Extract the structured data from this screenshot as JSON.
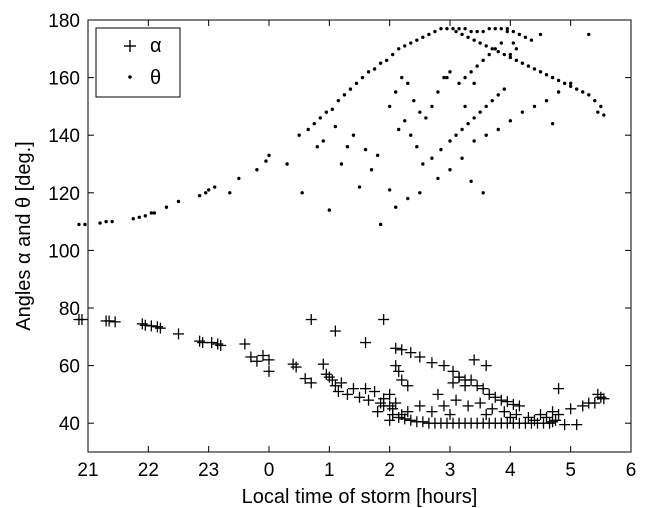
{
  "chart_data": {
    "type": "scatter",
    "title": "",
    "xlabel": "Local time of storm [hours]",
    "ylabel": "Angles α and θ [deg.]",
    "xlim": [
      21,
      30
    ],
    "ylim": [
      30,
      180
    ],
    "xticks": [
      21,
      22,
      23,
      24,
      25,
      26,
      27,
      28,
      29,
      30
    ],
    "xtick_labels": [
      "21",
      "22",
      "23",
      "0",
      "1",
      "2",
      "3",
      "4",
      "5",
      "6"
    ],
    "yticks": [
      40,
      60,
      80,
      100,
      120,
      140,
      160,
      180
    ],
    "ytick_labels": [
      "40",
      "60",
      "80",
      "100",
      "120",
      "140",
      "160",
      "180"
    ],
    "grid": false,
    "legend_placement": "top-left",
    "series": [
      {
        "name": "α",
        "marker": "plus",
        "color": "#000000",
        "points": [
          [
            20.85,
            76
          ],
          [
            20.9,
            76
          ],
          [
            21.3,
            75.5
          ],
          [
            21.35,
            75.5
          ],
          [
            21.45,
            75.2
          ],
          [
            21.9,
            74.5
          ],
          [
            21.95,
            74
          ],
          [
            22.05,
            73.8
          ],
          [
            22.15,
            73.5
          ],
          [
            22.2,
            73
          ],
          [
            22.5,
            71
          ],
          [
            22.85,
            68.5
          ],
          [
            22.9,
            68
          ],
          [
            23.05,
            68
          ],
          [
            23.15,
            67.5
          ],
          [
            23.2,
            67
          ],
          [
            23.6,
            67.5
          ],
          [
            23.7,
            63
          ],
          [
            23.8,
            61.5
          ],
          [
            23.9,
            63.5
          ],
          [
            24.0,
            62
          ],
          [
            24.0,
            58
          ],
          [
            24.4,
            60.5
          ],
          [
            24.45,
            59.5
          ],
          [
            24.6,
            55.5
          ],
          [
            24.7,
            54
          ],
          [
            24.7,
            76
          ],
          [
            24.9,
            60.5
          ],
          [
            24.95,
            57
          ],
          [
            25.0,
            56
          ],
          [
            25.05,
            55
          ],
          [
            25.1,
            53
          ],
          [
            25.15,
            51
          ],
          [
            25.2,
            54
          ],
          [
            25.3,
            50
          ],
          [
            25.4,
            52
          ],
          [
            25.5,
            49
          ],
          [
            25.6,
            52
          ],
          [
            25.65,
            48
          ],
          [
            25.75,
            51
          ],
          [
            25.85,
            47
          ],
          [
            25.9,
            48.5
          ],
          [
            26.0,
            46
          ],
          [
            26.05,
            45
          ],
          [
            25.1,
            72
          ],
          [
            25.6,
            68
          ],
          [
            25.9,
            76
          ],
          [
            26.1,
            66
          ],
          [
            26.2,
            65.5
          ],
          [
            26.35,
            64.5
          ],
          [
            26.5,
            63
          ],
          [
            26.7,
            61
          ],
          [
            26.9,
            60
          ],
          [
            27.05,
            58
          ],
          [
            27.15,
            56
          ],
          [
            27.25,
            55
          ],
          [
            27.35,
            55
          ],
          [
            27.45,
            53
          ],
          [
            27.55,
            52
          ],
          [
            27.65,
            50
          ],
          [
            27.75,
            49
          ],
          [
            27.85,
            48
          ],
          [
            27.95,
            47.5
          ],
          [
            28.05,
            46.5
          ],
          [
            28.15,
            46
          ],
          [
            27.05,
            54
          ],
          [
            27.15,
            56
          ],
          [
            27.25,
            53
          ],
          [
            27.4,
            62
          ],
          [
            27.6,
            60
          ],
          [
            26.1,
            60
          ],
          [
            26.2,
            55
          ],
          [
            26.3,
            53
          ],
          [
            26.15,
            58
          ],
          [
            26.0,
            50
          ],
          [
            26.1,
            47
          ],
          [
            26.05,
            43
          ],
          [
            26.15,
            42
          ],
          [
            26.25,
            41.5
          ],
          [
            26.35,
            41
          ],
          [
            26.45,
            40.5
          ],
          [
            26.55,
            40.5
          ],
          [
            26.65,
            40
          ],
          [
            26.75,
            40
          ],
          [
            26.85,
            40
          ],
          [
            26.95,
            40
          ],
          [
            27.05,
            40
          ],
          [
            27.15,
            40
          ],
          [
            27.25,
            40
          ],
          [
            27.35,
            40
          ],
          [
            27.45,
            40
          ],
          [
            27.55,
            40
          ],
          [
            27.65,
            40
          ],
          [
            27.75,
            40
          ],
          [
            27.85,
            40
          ],
          [
            27.95,
            40
          ],
          [
            28.05,
            40
          ],
          [
            28.15,
            40
          ],
          [
            28.25,
            40
          ],
          [
            28.35,
            40
          ],
          [
            28.45,
            40
          ],
          [
            28.55,
            40
          ],
          [
            28.65,
            40
          ],
          [
            28.7,
            40.5
          ],
          [
            28.75,
            41
          ],
          [
            26.5,
            46
          ],
          [
            26.7,
            44
          ],
          [
            26.9,
            46
          ],
          [
            27.1,
            48
          ],
          [
            27.3,
            46
          ],
          [
            27.5,
            47
          ],
          [
            27.7,
            45
          ],
          [
            27.9,
            44
          ],
          [
            28.1,
            43
          ],
          [
            28.3,
            42
          ],
          [
            28.5,
            43
          ],
          [
            28.7,
            44
          ],
          [
            26.8,
            50
          ],
          [
            27.0,
            43
          ],
          [
            27.6,
            43
          ],
          [
            28.0,
            42
          ],
          [
            28.4,
            41
          ],
          [
            28.6,
            42
          ],
          [
            28.8,
            43
          ],
          [
            29.0,
            45
          ],
          [
            29.2,
            46
          ],
          [
            29.4,
            47
          ],
          [
            29.5,
            49
          ],
          [
            29.55,
            48.5
          ],
          [
            29.3,
            47
          ],
          [
            29.45,
            50
          ],
          [
            28.8,
            52
          ],
          [
            28.9,
            39.5
          ],
          [
            29.1,
            39.5
          ],
          [
            25.8,
            44
          ],
          [
            25.9,
            46
          ],
          [
            26.0,
            41
          ],
          [
            26.2,
            43
          ],
          [
            26.3,
            44
          ]
        ]
      },
      {
        "name": "θ",
        "marker": "dot",
        "color": "#000000",
        "points": [
          [
            20.85,
            109
          ],
          [
            20.95,
            109
          ],
          [
            21.2,
            109.5
          ],
          [
            21.3,
            110
          ],
          [
            21.4,
            110
          ],
          [
            21.75,
            111
          ],
          [
            21.85,
            111.5
          ],
          [
            21.95,
            112
          ],
          [
            22.05,
            113
          ],
          [
            22.1,
            113
          ],
          [
            22.3,
            115
          ],
          [
            22.5,
            117
          ],
          [
            22.85,
            119
          ],
          [
            22.95,
            120
          ],
          [
            23.0,
            121
          ],
          [
            23.1,
            122
          ],
          [
            23.35,
            120
          ],
          [
            23.5,
            125
          ],
          [
            23.8,
            128
          ],
          [
            23.95,
            131
          ],
          [
            24.0,
            133
          ],
          [
            24.3,
            130
          ],
          [
            24.5,
            140
          ],
          [
            24.55,
            120
          ],
          [
            24.65,
            142
          ],
          [
            24.75,
            144
          ],
          [
            24.85,
            146
          ],
          [
            24.95,
            148
          ],
          [
            25.05,
            149
          ],
          [
            25.15,
            152
          ],
          [
            25.25,
            154
          ],
          [
            25.35,
            156
          ],
          [
            25.45,
            158
          ],
          [
            25.55,
            160
          ],
          [
            25.65,
            162
          ],
          [
            25.75,
            163
          ],
          [
            25.85,
            165
          ],
          [
            25.95,
            166
          ],
          [
            26.05,
            168
          ],
          [
            26.15,
            170
          ],
          [
            26.25,
            171
          ],
          [
            26.35,
            172
          ],
          [
            26.45,
            173
          ],
          [
            26.55,
            174
          ],
          [
            26.65,
            175
          ],
          [
            26.75,
            176
          ],
          [
            26.85,
            177
          ],
          [
            26.95,
            177
          ],
          [
            27.05,
            177
          ],
          [
            27.15,
            177
          ],
          [
            27.25,
            177
          ],
          [
            27.35,
            176
          ],
          [
            27.45,
            176
          ],
          [
            27.55,
            176
          ],
          [
            27.65,
            177
          ],
          [
            27.75,
            177
          ],
          [
            27.85,
            177
          ],
          [
            27.95,
            177
          ],
          [
            28.05,
            176
          ],
          [
            28.15,
            175
          ],
          [
            28.25,
            174
          ],
          [
            28.35,
            173
          ],
          [
            27.1,
            176
          ],
          [
            27.2,
            175
          ],
          [
            27.3,
            174
          ],
          [
            27.4,
            173
          ],
          [
            27.5,
            172
          ],
          [
            27.6,
            171
          ],
          [
            27.7,
            170
          ],
          [
            27.8,
            169
          ],
          [
            27.9,
            168
          ],
          [
            28.0,
            167
          ],
          [
            28.1,
            166
          ],
          [
            28.2,
            165
          ],
          [
            28.3,
            164
          ],
          [
            28.4,
            163
          ],
          [
            28.5,
            162
          ],
          [
            28.6,
            161
          ],
          [
            28.7,
            160
          ],
          [
            28.8,
            159
          ],
          [
            28.9,
            158
          ],
          [
            29.0,
            157
          ],
          [
            29.1,
            156
          ],
          [
            29.2,
            155
          ],
          [
            29.3,
            154
          ],
          [
            29.4,
            152
          ],
          [
            29.5,
            150
          ],
          [
            29.55,
            147
          ],
          [
            29.45,
            148
          ],
          [
            29.3,
            175
          ],
          [
            28.5,
            175
          ],
          [
            27.95,
            176
          ],
          [
            27.85,
            172
          ],
          [
            27.75,
            170
          ],
          [
            27.65,
            168
          ],
          [
            27.55,
            166
          ],
          [
            27.45,
            164
          ],
          [
            27.35,
            162
          ],
          [
            27.25,
            160
          ],
          [
            27.15,
            158
          ],
          [
            26.0,
            150
          ],
          [
            26.1,
            155
          ],
          [
            26.2,
            160
          ],
          [
            26.3,
            158
          ],
          [
            26.4,
            152
          ],
          [
            26.5,
            148
          ],
          [
            26.6,
            146
          ],
          [
            26.7,
            150
          ],
          [
            26.8,
            155
          ],
          [
            26.9,
            160
          ],
          [
            26.15,
            142
          ],
          [
            26.25,
            145
          ],
          [
            26.35,
            140
          ],
          [
            26.45,
            136
          ],
          [
            26.55,
            130
          ],
          [
            26.7,
            132
          ],
          [
            26.85,
            135
          ],
          [
            27.0,
            138
          ],
          [
            27.1,
            140
          ],
          [
            27.2,
            142
          ],
          [
            27.3,
            144
          ],
          [
            27.4,
            146
          ],
          [
            27.5,
            148
          ],
          [
            27.6,
            150
          ],
          [
            27.7,
            152
          ],
          [
            27.8,
            154
          ],
          [
            27.9,
            156
          ],
          [
            26.0,
            121
          ],
          [
            26.1,
            115
          ],
          [
            26.3,
            118
          ],
          [
            26.5,
            120
          ],
          [
            26.8,
            125
          ],
          [
            27.0,
            128
          ],
          [
            27.2,
            132
          ],
          [
            27.4,
            138
          ],
          [
            27.6,
            140
          ],
          [
            27.8,
            142
          ],
          [
            28.0,
            145
          ],
          [
            28.2,
            148
          ],
          [
            28.4,
            150
          ],
          [
            28.6,
            152
          ],
          [
            28.8,
            155
          ],
          [
            29.0,
            158
          ],
          [
            25.0,
            114
          ],
          [
            25.85,
            109
          ],
          [
            25.5,
            122
          ],
          [
            25.7,
            128
          ],
          [
            25.3,
            136
          ],
          [
            25.4,
            140
          ],
          [
            25.6,
            135
          ],
          [
            25.8,
            133
          ],
          [
            25.2,
            130
          ],
          [
            24.8,
            136
          ],
          [
            24.9,
            138
          ],
          [
            25.1,
            143
          ],
          [
            27.0,
            162
          ],
          [
            27.4,
            158
          ],
          [
            28.7,
            144
          ],
          [
            27.25,
            150
          ],
          [
            27.35,
            124
          ],
          [
            27.55,
            120
          ],
          [
            28.0,
            168
          ],
          [
            28.05,
            172
          ],
          [
            28.1,
            170
          ],
          [
            26.95,
            160
          ]
        ]
      }
    ]
  }
}
